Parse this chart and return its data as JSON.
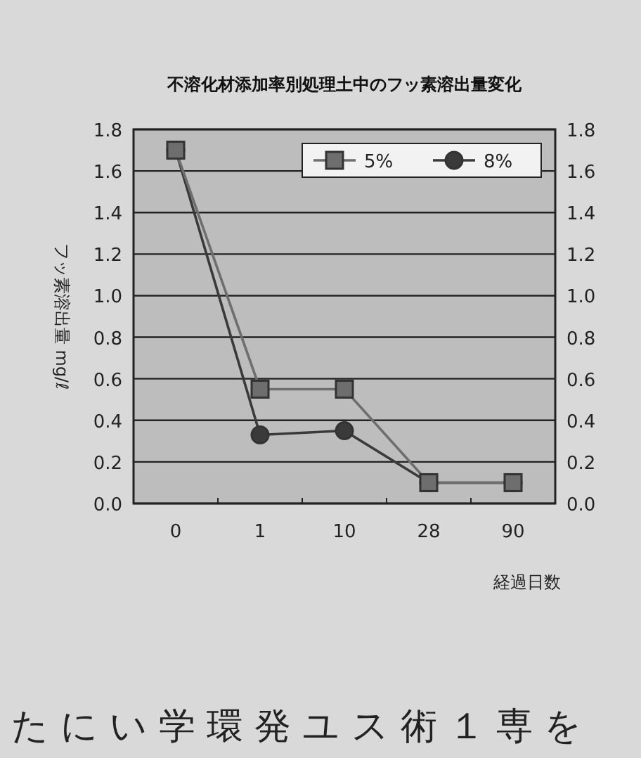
{
  "chart_data": {
    "type": "line",
    "title": "不溶化材添加率別処理土中のフッ素溶出量変化",
    "xlabel": "経過日数",
    "ylabel": "フッ素溶出量 mg/ℓ",
    "categories": [
      "0",
      "1",
      "10",
      "28",
      "90"
    ],
    "series": [
      {
        "name": "5%",
        "color": "#6e6e6e",
        "marker": "square",
        "values": [
          1.7,
          0.55,
          0.55,
          0.1,
          0.1
        ]
      },
      {
        "name": "8%",
        "color": "#3a3a3a",
        "marker": "circle",
        "values": [
          1.7,
          0.33,
          0.35,
          0.1,
          0.1
        ]
      }
    ],
    "ylim": [
      0,
      1.8
    ],
    "yticks": [
      {
        "value": 0,
        "label": "0.0"
      },
      0.2,
      0.4,
      0.6,
      0.8,
      {
        "value": 1,
        "label": "1.0"
      },
      1.2,
      1.4,
      1.6,
      1.8
    ],
    "y2lim": [
      0,
      1.8
    ],
    "y2ticks": [
      {
        "value": 0,
        "label": "0.0"
      },
      0.2,
      0.4,
      0.6,
      0.8,
      {
        "value": 1,
        "label": "1.0"
      },
      1.2,
      1.4,
      1.6,
      1.8
    ],
    "grid": "y",
    "legend": "top right",
    "line_style": "solid",
    "annotations": [
      "たにい学環発ユス術１専を"
    ]
  }
}
